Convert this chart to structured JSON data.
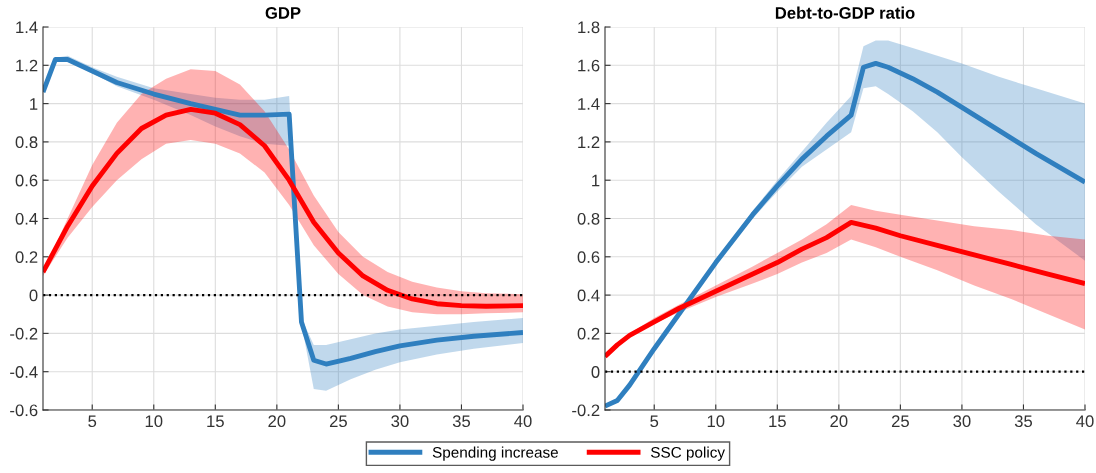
{
  "chart_data": [
    {
      "type": "line",
      "title": "GDP",
      "xlim": [
        1,
        40
      ],
      "xticks": [
        5,
        10,
        15,
        20,
        25,
        30,
        35,
        40
      ],
      "ylim": [
        -0.6,
        1.4
      ],
      "yticks": [
        -0.6,
        -0.4,
        -0.2,
        0,
        0.2,
        0.4,
        0.6,
        0.8,
        1,
        1.2,
        1.4
      ],
      "grid": true,
      "legend": "bottom",
      "line_style": "solid",
      "ref_lines": [
        {
          "axis": "y",
          "value": 0,
          "color": "#000000",
          "line_style": "dotted"
        }
      ],
      "series": [
        {
          "name": "Spending increase",
          "color": "#2f7fbf",
          "x": [
            1,
            2,
            3,
            5,
            7,
            10,
            13,
            15,
            17,
            19,
            21,
            22,
            23,
            24,
            26,
            28,
            30,
            33,
            36,
            40
          ],
          "values": [
            1.06,
            1.23,
            1.23,
            1.17,
            1.11,
            1.05,
            1.0,
            0.97,
            0.94,
            0.94,
            0.945,
            -0.14,
            -0.34,
            -0.36,
            -0.33,
            -0.295,
            -0.265,
            -0.235,
            -0.215,
            -0.195
          ],
          "lower": [
            1.06,
            1.22,
            1.22,
            1.16,
            1.09,
            1.02,
            0.94,
            0.88,
            0.83,
            0.79,
            0.78,
            -0.15,
            -0.49,
            -0.5,
            -0.44,
            -0.39,
            -0.35,
            -0.31,
            -0.28,
            -0.25
          ],
          "upper": [
            1.06,
            1.24,
            1.25,
            1.19,
            1.14,
            1.08,
            1.05,
            1.03,
            1.02,
            1.02,
            1.04,
            -0.12,
            -0.26,
            -0.26,
            -0.23,
            -0.2,
            -0.18,
            -0.16,
            -0.14,
            -0.12
          ]
        },
        {
          "name": "SSC policy",
          "color": "#ff0000",
          "x": [
            1,
            3,
            5,
            7,
            9,
            11,
            13,
            15,
            17,
            19,
            21,
            23,
            25,
            27,
            29,
            31,
            33,
            35,
            37,
            40
          ],
          "values": [
            0.12,
            0.36,
            0.57,
            0.74,
            0.87,
            0.94,
            0.97,
            0.95,
            0.89,
            0.78,
            0.6,
            0.38,
            0.22,
            0.1,
            0.025,
            -0.02,
            -0.045,
            -0.055,
            -0.058,
            -0.055
          ],
          "lower": [
            0.1,
            0.3,
            0.46,
            0.6,
            0.71,
            0.79,
            0.81,
            0.79,
            0.74,
            0.64,
            0.47,
            0.26,
            0.11,
            0.0,
            -0.06,
            -0.09,
            -0.1,
            -0.1,
            -0.095,
            -0.09
          ],
          "upper": [
            0.12,
            0.4,
            0.68,
            0.9,
            1.05,
            1.13,
            1.18,
            1.17,
            1.1,
            0.96,
            0.76,
            0.52,
            0.33,
            0.2,
            0.12,
            0.07,
            0.04,
            0.02,
            0.01,
            0.005
          ]
        }
      ]
    },
    {
      "type": "line",
      "title": "Debt-to-GDP ratio",
      "xlim": [
        1,
        40
      ],
      "xticks": [
        5,
        10,
        15,
        20,
        25,
        30,
        35,
        40
      ],
      "ylim": [
        -0.2,
        1.8
      ],
      "yticks": [
        -0.2,
        0,
        0.2,
        0.4,
        0.6,
        0.8,
        1,
        1.2,
        1.4,
        1.6,
        1.8
      ],
      "grid": true,
      "legend": "bottom",
      "line_style": "solid",
      "ref_lines": [
        {
          "axis": "y",
          "value": 0,
          "color": "#000000",
          "line_style": "dotted"
        }
      ],
      "series": [
        {
          "name": "Spending increase",
          "color": "#2f7fbf",
          "x": [
            1,
            2,
            3,
            5,
            7,
            10,
            13,
            15,
            17,
            19,
            21,
            22,
            23,
            24,
            26,
            28,
            30,
            33,
            36,
            40
          ],
          "values": [
            -0.18,
            -0.15,
            -0.07,
            0.12,
            0.3,
            0.57,
            0.82,
            0.97,
            1.11,
            1.23,
            1.34,
            1.59,
            1.61,
            1.59,
            1.53,
            1.46,
            1.38,
            1.26,
            1.14,
            0.99
          ],
          "lower": [
            -0.18,
            -0.15,
            -0.07,
            0.12,
            0.3,
            0.56,
            0.8,
            0.94,
            1.07,
            1.16,
            1.25,
            1.48,
            1.49,
            1.45,
            1.36,
            1.25,
            1.12,
            0.94,
            0.77,
            0.58
          ],
          "upper": [
            -0.18,
            -0.15,
            -0.07,
            0.12,
            0.3,
            0.58,
            0.84,
            1.0,
            1.15,
            1.3,
            1.44,
            1.7,
            1.73,
            1.73,
            1.69,
            1.65,
            1.61,
            1.54,
            1.48,
            1.4
          ]
        },
        {
          "name": "SSC policy",
          "color": "#ff0000",
          "x": [
            1,
            2,
            3,
            5,
            7,
            10,
            13,
            15,
            17,
            19,
            21,
            23,
            25,
            28,
            31,
            34,
            37,
            40
          ],
          "values": [
            0.08,
            0.14,
            0.19,
            0.26,
            0.33,
            0.42,
            0.51,
            0.57,
            0.64,
            0.7,
            0.78,
            0.75,
            0.71,
            0.66,
            0.61,
            0.56,
            0.51,
            0.46
          ],
          "lower": [
            0.08,
            0.13,
            0.18,
            0.25,
            0.31,
            0.39,
            0.46,
            0.51,
            0.57,
            0.62,
            0.69,
            0.65,
            0.6,
            0.53,
            0.45,
            0.38,
            0.3,
            0.22
          ],
          "upper": [
            0.08,
            0.14,
            0.2,
            0.28,
            0.35,
            0.45,
            0.55,
            0.62,
            0.69,
            0.77,
            0.87,
            0.84,
            0.82,
            0.79,
            0.76,
            0.74,
            0.71,
            0.69
          ]
        }
      ]
    }
  ]
}
